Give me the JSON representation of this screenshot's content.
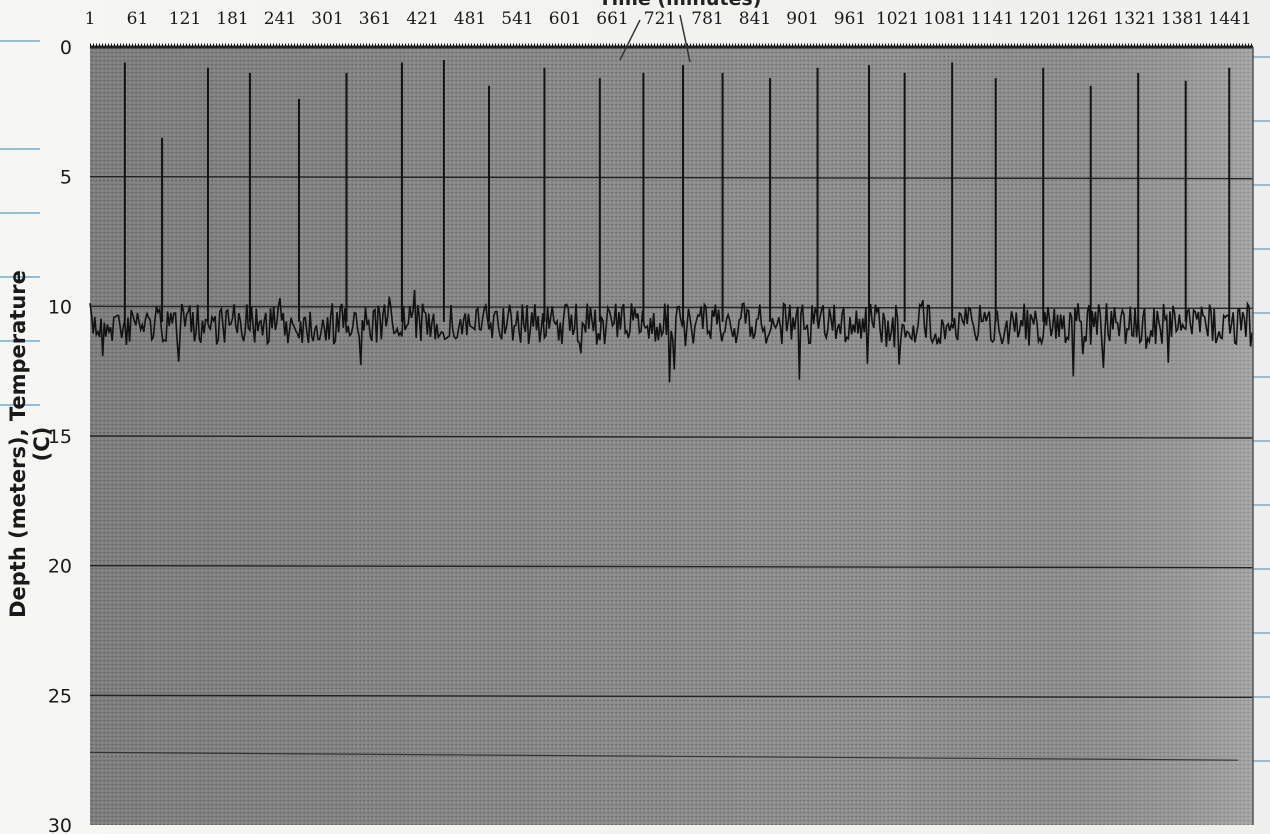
{
  "chart_data": {
    "type": "line",
    "title": "Time (minutes)",
    "ylabel": "Depth (meters), Temperature (C)",
    "x_tick_labels": [
      "1",
      "61",
      "121",
      "181",
      "241",
      "301",
      "361",
      "421",
      "481",
      "541",
      "601",
      "661",
      "721",
      "781",
      "841",
      "901",
      "961",
      "1021",
      "1081",
      "1141",
      "1201",
      "1261",
      "1321",
      "1381",
      "1441"
    ],
    "y_tick_labels": [
      "0",
      "5",
      "10",
      "15",
      "20",
      "25",
      "30"
    ],
    "ylim": [
      0,
      30
    ],
    "y_inverted": true,
    "xlim": [
      1,
      1470
    ],
    "grid": "horizontal",
    "series": [
      {
        "baseline_value": 10.6,
        "spike_times": [
          45,
          92,
          150,
          203,
          265,
          325,
          395,
          448,
          505,
          575,
          645,
          700,
          750,
          800,
          860,
          920,
          985,
          1030,
          1090,
          1145,
          1205,
          1265,
          1325,
          1385,
          1440
        ],
        "spike_depths": [
          0.6,
          3.5,
          0.8,
          1.0,
          2.0,
          1.0,
          0.6,
          0.5,
          1.5,
          0.8,
          1.2,
          1.0,
          0.7,
          1.0,
          1.2,
          0.8,
          0.7,
          1.0,
          0.6,
          1.2,
          0.8,
          1.5,
          1.0,
          1.3,
          0.8
        ]
      }
    ]
  }
}
